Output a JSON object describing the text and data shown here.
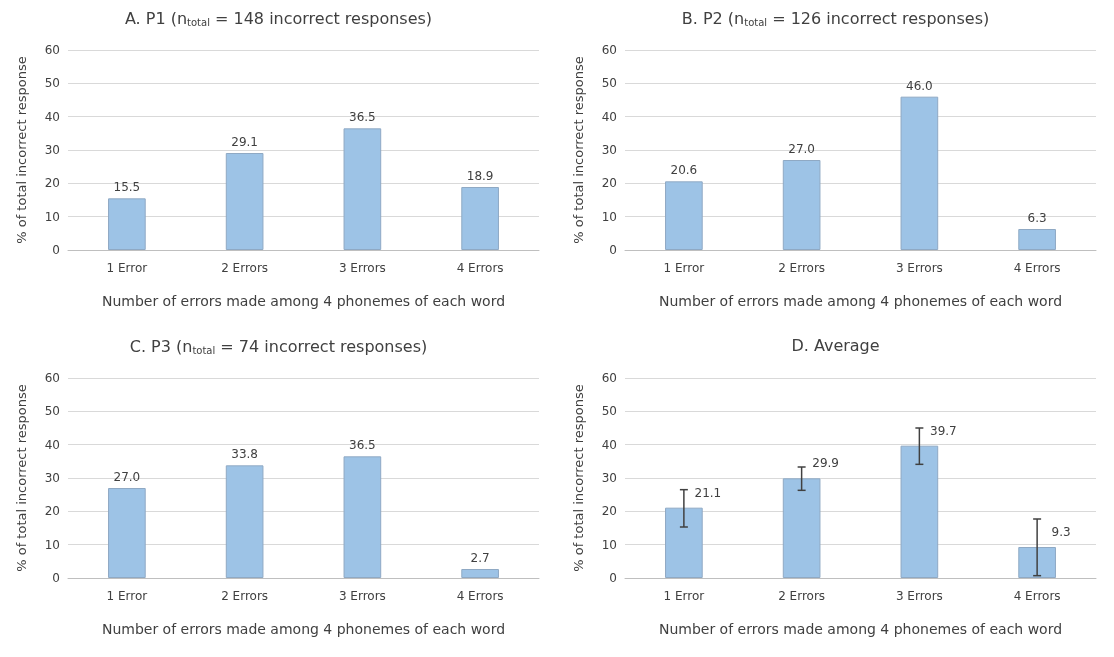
{
  "chart_data": [
    {
      "type": "bar",
      "title": "A. P1 (n$_{total}$ = 148 incorrect responses)",
      "xlabel": "Number of errors made among 4 phonemes of each word",
      "ylabel": "% of total incorrect response",
      "categories": [
        "1 Error",
        "2 Errors",
        "3 Errors",
        "4 Errors"
      ],
      "values": [
        15.5,
        29.1,
        36.5,
        18.9
      ],
      "value_labels": [
        "15.5",
        "29.1",
        "36.5",
        "18.9"
      ],
      "color": "#9dc3e6",
      "ylim": [
        0,
        60
      ],
      "yticks": [
        0,
        10,
        20,
        30,
        40,
        50,
        60
      ],
      "grid": "y"
    },
    {
      "type": "bar",
      "title": "B. P2 (n$_{total}$ = 126 incorrect responses)",
      "xlabel": "Number of errors made among 4 phonemes of each word",
      "ylabel": "% of total incorrect response",
      "categories": [
        "1 Error",
        "2 Errors",
        "3 Errors",
        "4 Errors"
      ],
      "values": [
        20.6,
        27.0,
        46.0,
        6.3
      ],
      "value_labels": [
        "20.6",
        "27.0",
        "46.0",
        "6.3"
      ],
      "color": "#9dc3e6",
      "ylim": [
        0,
        60
      ],
      "yticks": [
        0,
        10,
        20,
        30,
        40,
        50,
        60
      ],
      "grid": "y"
    },
    {
      "type": "bar",
      "title": "C. P3 (n$_{total}$ = 74 incorrect responses)",
      "xlabel": "Number of errors made among 4 phonemes of each word",
      "ylabel": "% of total incorrect response",
      "categories": [
        "1 Error",
        "2 Errors",
        "3 Errors",
        "4 Errors"
      ],
      "values": [
        27.0,
        33.8,
        36.5,
        2.7
      ],
      "value_labels": [
        "27.0",
        "33.8",
        "36.5",
        "2.7"
      ],
      "color": "#9dc3e6",
      "ylim": [
        0,
        60
      ],
      "yticks": [
        0,
        10,
        20,
        30,
        40,
        50,
        60
      ],
      "grid": "y"
    },
    {
      "type": "bar",
      "title": "D. Average",
      "xlabel": "Number of errors made among 4 phonemes of each word",
      "ylabel": "% of total incorrect response",
      "categories": [
        "1 Error",
        "2 Errors",
        "3 Errors",
        "4 Errors"
      ],
      "values": [
        21.1,
        29.9,
        39.7,
        9.3
      ],
      "value_labels": [
        "21.1",
        "29.9",
        "39.7",
        "9.3"
      ],
      "errors": [
        [
          15.3,
          26.5
        ],
        [
          26.3,
          33.3
        ],
        [
          34.1,
          45.0
        ],
        [
          0.7,
          17.7
        ]
      ],
      "color": "#9dc3e6",
      "ylim": [
        0,
        60
      ],
      "yticks": [
        0,
        10,
        20,
        30,
        40,
        50,
        60
      ],
      "grid": "y"
    }
  ]
}
